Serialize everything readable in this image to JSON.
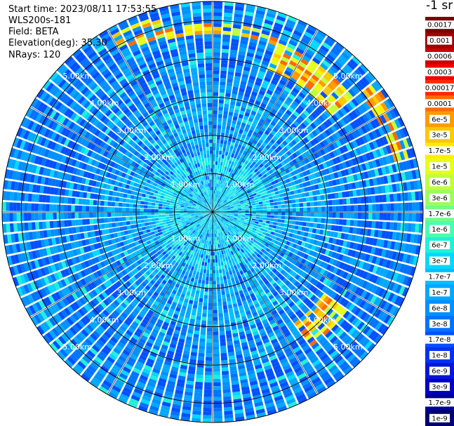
{
  "header": {
    "start_time": "Start time: 2023/08/11 17:53:55",
    "instrument": "WLS200s-181",
    "field": "Field: BETA",
    "elevation": "Elevation(deg): 35.30",
    "nrays": "NRays: 120"
  },
  "colorbar": {
    "unit": "-1 sr",
    "labels": [
      "0.0017",
      "0.001",
      "0.0006",
      "0.0003",
      "0.00017",
      "0.0001",
      "6e-5",
      "3e-5",
      "1.7e-5",
      "1e-5",
      "6e-6",
      "3e-6",
      "1.7e-6",
      "1e-6",
      "6e-7",
      "3e-7",
      "1.7e-7",
      "1e-7",
      "6e-8",
      "3e-8",
      "1.7e-8",
      "1e-8",
      "6e-9",
      "3e-9",
      "1.7e-9",
      "1e-9"
    ],
    "colors": [
      "#7a0000",
      "#9e0000",
      "#c80000",
      "#ee0000",
      "#ff2a00",
      "#ff6a00",
      "#ff9a00",
      "#ffc800",
      "#ffee00",
      "#e6ff1a",
      "#c0ff3c",
      "#9aff60",
      "#70ff88",
      "#48ffb0",
      "#20f0d8",
      "#00d8ff",
      "#00c0ff",
      "#00a8ff",
      "#0090ff",
      "#0072ff",
      "#0050ff",
      "#0030f0",
      "#0016d8",
      "#0000c0",
      "#00009a",
      "#000070"
    ]
  },
  "chart_data": {
    "type": "ppi",
    "rays": 120,
    "max_range_km": 5.5,
    "range_rings_km": [
      1,
      2,
      3,
      4,
      5
    ],
    "ring_labels": [
      "1.00km",
      "2.00km",
      "3.00km",
      "4.00km",
      "5.00km"
    ],
    "spoke_step_deg": 30,
    "high_backscatter_bands": [
      {
        "az_from": 330,
        "az_to": 345,
        "range_from_km": 4.7,
        "range_to_km": 5.3
      },
      {
        "az_from": 345,
        "az_to": 20,
        "range_from_km": 4.6,
        "range_to_km": 4.9
      },
      {
        "az_from": 20,
        "az_to": 50,
        "range_from_km": 4.0,
        "range_to_km": 4.7
      },
      {
        "az_from": 50,
        "az_to": 75,
        "range_from_km": 4.9,
        "range_to_km": 5.4
      },
      {
        "az_from": 125,
        "az_to": 145,
        "range_from_km": 3.6,
        "range_to_km": 4.4
      }
    ]
  }
}
